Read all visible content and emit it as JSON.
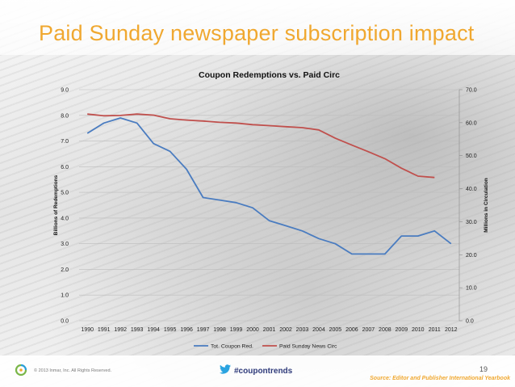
{
  "slide": {
    "title": "Paid Sunday newspaper subscription impact",
    "copyright": "© 2013 Inmar, Inc. All Rights Reserved.",
    "hashtag": "#coupontrends",
    "page_number": "19",
    "source": "Source: Editor and Publisher International Yearbook"
  },
  "colors": {
    "title": "#f0a830",
    "coupon_series": "#4a7cc0",
    "circ_series": "#c0504d"
  },
  "icons": {
    "logo": "inmar-logo-icon",
    "hashtag": "twitter-bird-icon"
  },
  "chart_data": {
    "type": "line",
    "title": "Coupon Redemptions vs. Paid Circ",
    "xlabel": "",
    "ylabel": "Billions of Redemptions",
    "y2label": "Millions in Circulation",
    "categories": [
      "1990",
      "1991",
      "1992",
      "1993",
      "1994",
      "1995",
      "1996",
      "1997",
      "1998",
      "1999",
      "2000",
      "2001",
      "2002",
      "2003",
      "2004",
      "2005",
      "2006",
      "2007",
      "2008",
      "2009",
      "2010",
      "2011",
      "2012"
    ],
    "ylim": [
      0,
      9
    ],
    "y2lim": [
      0,
      70
    ],
    "y_ticks": [
      "0.0",
      "1.0",
      "2.0",
      "3.0",
      "4.0",
      "5.0",
      "6.0",
      "7.0",
      "8.0",
      "9.0"
    ],
    "y2_ticks": [
      "0.0",
      "10.0",
      "20.0",
      "30.0",
      "40.0",
      "50.0",
      "60.0",
      "70.0"
    ],
    "grid": true,
    "legend": "bottom",
    "series": [
      {
        "name": "Tot. Coupon Red.",
        "axis": "left",
        "values": [
          7.3,
          7.7,
          7.9,
          7.7,
          6.9,
          6.6,
          5.9,
          4.8,
          4.7,
          4.6,
          4.4,
          3.9,
          3.7,
          3.5,
          3.2,
          3.0,
          2.6,
          2.6,
          2.6,
          3.3,
          3.3,
          3.5,
          3.0
        ]
      },
      {
        "name": "Paid Sunday News Circ",
        "axis": "right",
        "values": [
          62.6,
          62.1,
          62.2,
          62.6,
          62.3,
          61.2,
          60.8,
          60.5,
          60.1,
          59.9,
          59.4,
          59.1,
          58.8,
          58.5,
          57.8,
          55.3,
          53.2,
          51.2,
          49.1,
          46.2,
          43.8,
          43.4,
          null
        ]
      }
    ]
  }
}
